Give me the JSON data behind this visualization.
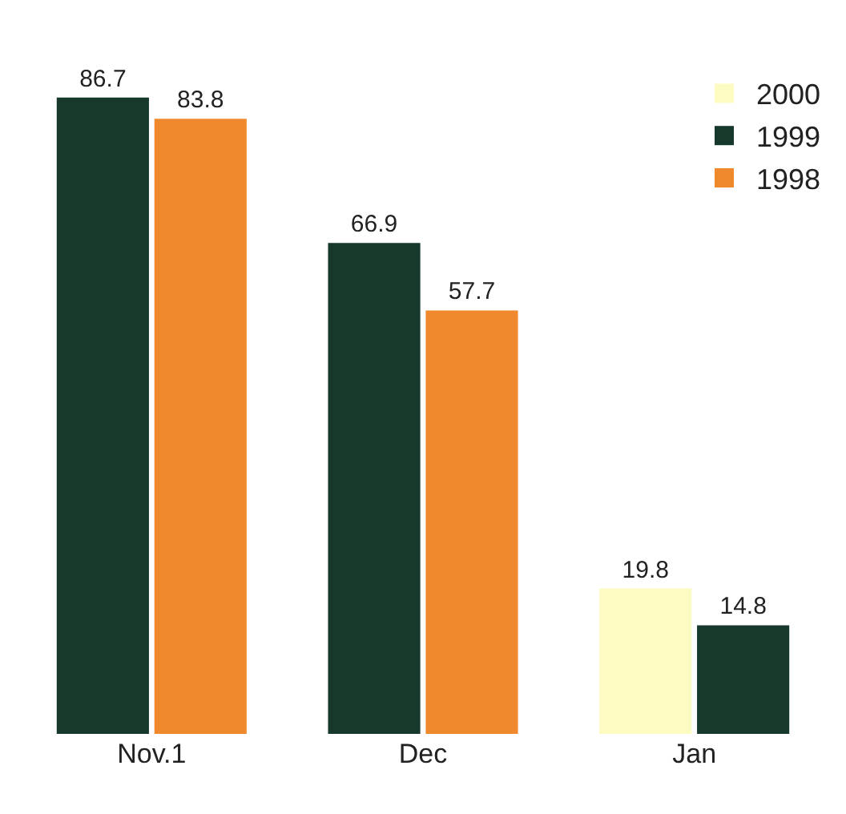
{
  "chart_data": {
    "type": "bar",
    "categories": [
      "Nov.1",
      "Dec",
      "Jan"
    ],
    "series": [
      {
        "name": "2000",
        "color": "#fbfbc2",
        "values": [
          null,
          null,
          19.8
        ]
      },
      {
        "name": "1999",
        "color": "#17392b",
        "values": [
          86.7,
          66.9,
          14.8
        ]
      },
      {
        "name": "1998",
        "color": "#f0892e",
        "values": [
          83.8,
          57.7,
          null
        ]
      }
    ],
    "data_labels": true,
    "legend": "top right",
    "tick_labels": "x"
  }
}
